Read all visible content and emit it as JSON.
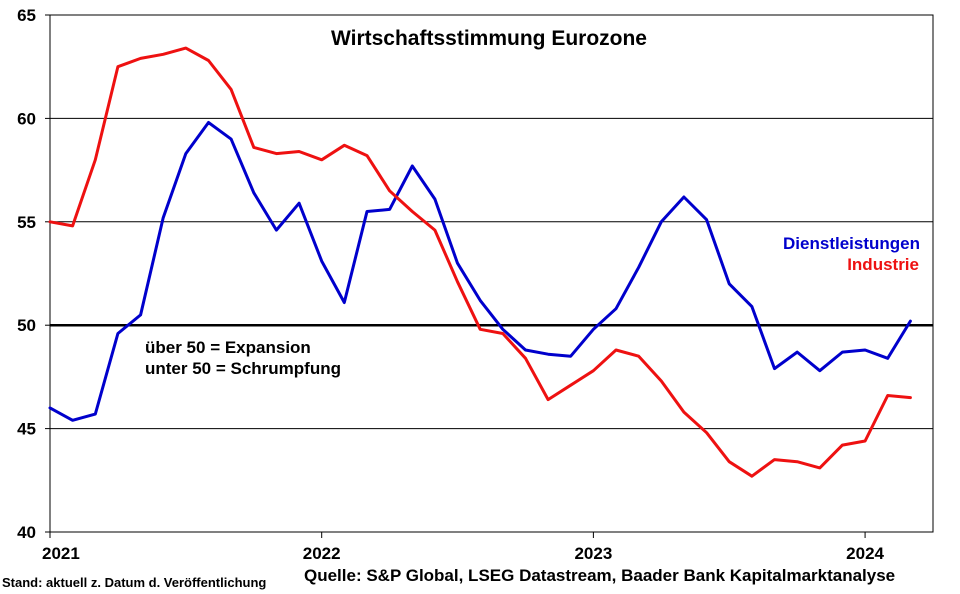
{
  "chart_data": {
    "type": "line",
    "title": "Wirtschaftsstimmung Eurozone",
    "ylim": [
      40,
      65
    ],
    "yticks": [
      40,
      45,
      50,
      55,
      60,
      65
    ],
    "xlim": [
      "2021-01",
      "2024-04"
    ],
    "xticks": [
      {
        "label": "2021",
        "x": "2021-01"
      },
      {
        "label": "2022",
        "x": "2022-01"
      },
      {
        "label": "2023",
        "x": "2023-01"
      },
      {
        "label": "2024",
        "x": "2024-01"
      }
    ],
    "grid": "horizontal",
    "reference_line": 50,
    "annotations": [
      "über 50 = Expansion",
      "unter 50 = Schrumpfung"
    ],
    "legend_placement": "right",
    "series": [
      {
        "name": "Dienstleistungen",
        "color": "#0000cc",
        "points": [
          [
            "2021-01",
            46.0
          ],
          [
            "2021-02",
            45.4
          ],
          [
            "2021-03",
            45.7
          ],
          [
            "2021-04",
            49.6
          ],
          [
            "2021-05",
            50.5
          ],
          [
            "2021-06",
            55.2
          ],
          [
            "2021-07",
            58.3
          ],
          [
            "2021-08",
            59.8
          ],
          [
            "2021-09",
            59.0
          ],
          [
            "2021-10",
            56.4
          ],
          [
            "2021-11",
            54.6
          ],
          [
            "2021-12",
            55.9
          ],
          [
            "2022-01",
            53.1
          ],
          [
            "2022-02",
            51.1
          ],
          [
            "2022-03",
            55.5
          ],
          [
            "2022-04",
            55.6
          ],
          [
            "2022-05",
            57.7
          ],
          [
            "2022-06",
            56.1
          ],
          [
            "2022-07",
            53.0
          ],
          [
            "2022-08",
            51.2
          ],
          [
            "2022-09",
            49.8
          ],
          [
            "2022-10",
            48.8
          ],
          [
            "2022-11",
            48.6
          ],
          [
            "2022-12",
            48.5
          ],
          [
            "2023-01",
            49.8
          ],
          [
            "2023-02",
            50.8
          ],
          [
            "2023-03",
            52.8
          ],
          [
            "2023-04",
            55.0
          ],
          [
            "2023-05",
            56.2
          ],
          [
            "2023-06",
            55.1
          ],
          [
            "2023-07",
            52.0
          ],
          [
            "2023-08",
            50.9
          ],
          [
            "2023-09",
            47.9
          ],
          [
            "2023-10",
            48.7
          ],
          [
            "2023-11",
            47.8
          ],
          [
            "2023-12",
            48.7
          ],
          [
            "2024-01",
            48.8
          ],
          [
            "2024-02",
            48.4
          ],
          [
            "2024-03",
            50.2
          ]
        ]
      },
      {
        "name": "Industrie",
        "color": "#ee1111",
        "points": [
          [
            "2021-01",
            55.0
          ],
          [
            "2021-02",
            54.8
          ],
          [
            "2021-03",
            58.0
          ],
          [
            "2021-04",
            62.5
          ],
          [
            "2021-05",
            62.9
          ],
          [
            "2021-06",
            63.1
          ],
          [
            "2021-07",
            63.4
          ],
          [
            "2021-08",
            62.8
          ],
          [
            "2021-09",
            61.4
          ],
          [
            "2021-10",
            58.6
          ],
          [
            "2021-11",
            58.3
          ],
          [
            "2021-12",
            58.4
          ],
          [
            "2022-01",
            58.0
          ],
          [
            "2022-02",
            58.7
          ],
          [
            "2022-03",
            58.2
          ],
          [
            "2022-04",
            56.5
          ],
          [
            "2022-05",
            55.5
          ],
          [
            "2022-06",
            54.6
          ],
          [
            "2022-07",
            52.1
          ],
          [
            "2022-08",
            49.8
          ],
          [
            "2022-09",
            49.6
          ],
          [
            "2022-10",
            48.4
          ],
          [
            "2022-11",
            46.4
          ],
          [
            "2022-12",
            47.1
          ],
          [
            "2023-01",
            47.8
          ],
          [
            "2023-02",
            48.8
          ],
          [
            "2023-03",
            48.5
          ],
          [
            "2023-04",
            47.3
          ],
          [
            "2023-05",
            45.8
          ],
          [
            "2023-06",
            44.8
          ],
          [
            "2023-07",
            43.4
          ],
          [
            "2023-08",
            42.7
          ],
          [
            "2023-09",
            43.5
          ],
          [
            "2023-10",
            43.4
          ],
          [
            "2023-11",
            43.1
          ],
          [
            "2023-12",
            44.2
          ],
          [
            "2024-01",
            44.4
          ],
          [
            "2024-02",
            46.6
          ],
          [
            "2024-03",
            46.5
          ]
        ]
      }
    ]
  },
  "footer": {
    "stand": "Stand: aktuell z. Datum d. Veröffentlichung",
    "quelle": "Quelle: S&P Global, LSEG Datastream, Baader Bank Kapitalmarktanalyse"
  }
}
